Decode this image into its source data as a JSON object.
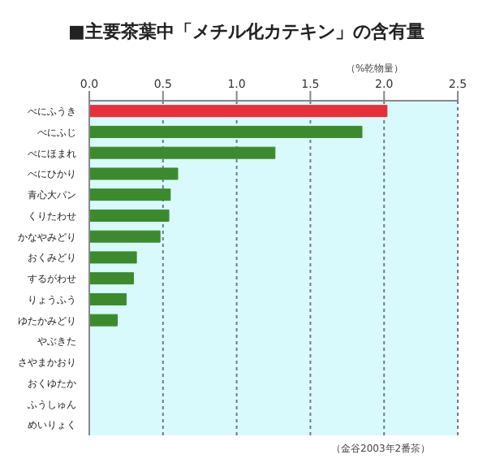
{
  "chart_data": {
    "type": "bar",
    "orientation": "horizontal",
    "title": "■主要茶葉中「メチル化カテキン」の含有量",
    "xlabel": "（%乾物量）",
    "categories": [
      "べにふうき",
      "べにふじ",
      "べにほまれ",
      "べにひかり",
      "青心大パン",
      "くりたわせ",
      "かなやみどり",
      "おくみどり",
      "するがわせ",
      "りょうふう",
      "ゆたかみどり",
      "やぶきた",
      "さやまかおり",
      "おくゆたか",
      "ふうしゅん",
      "めいりょく"
    ],
    "values": [
      2.02,
      1.85,
      1.26,
      0.6,
      0.55,
      0.54,
      0.48,
      0.32,
      0.3,
      0.25,
      0.19,
      0,
      0,
      0,
      0,
      0
    ],
    "colors": [
      "#e8303a",
      "#3c8a2c",
      "#3c8a2c",
      "#3c8a2c",
      "#3c8a2c",
      "#3c8a2c",
      "#3c8a2c",
      "#3c8a2c",
      "#3c8a2c",
      "#3c8a2c",
      "#3c8a2c",
      "#3c8a2c",
      "#3c8a2c",
      "#3c8a2c",
      "#3c8a2c",
      "#3c8a2c"
    ],
    "xlim": [
      0,
      2.5
    ],
    "xticks": [
      {
        "value": 0,
        "label": "0.0"
      },
      0.5,
      {
        "value": 1,
        "label": "1.0"
      },
      1.5,
      {
        "value": 2,
        "label": "2.0"
      },
      2.5
    ],
    "grid": "x",
    "annotations": [
      "（金谷2003年2番茶）"
    ]
  }
}
